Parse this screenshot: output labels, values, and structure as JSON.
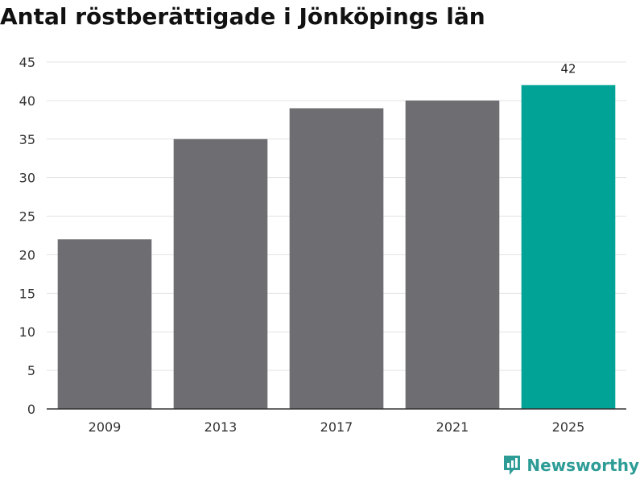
{
  "chart_data": {
    "type": "bar",
    "title": "Antal röstberättigade i Jönköpings län",
    "categories": [
      "2009",
      "2013",
      "2017",
      "2021",
      "2025"
    ],
    "values": [
      22,
      35,
      39,
      40,
      42
    ],
    "highlight_index": 4,
    "data_labels": [
      "",
      "",
      "",
      "",
      "42"
    ],
    "ylim": [
      0,
      45
    ],
    "yticks": [
      0,
      5,
      10,
      15,
      20,
      25,
      30,
      35,
      40,
      45
    ],
    "xlabel": "",
    "ylabel": "",
    "grid": true,
    "colors": {
      "bar": "#6e6d72",
      "highlight": "#00a396",
      "grid": "#e3e3e3",
      "axis": "#333333"
    }
  },
  "brand": {
    "name": "Newsworthy",
    "icon": "newsworthy-logo-icon",
    "color": "#2e9c96"
  }
}
